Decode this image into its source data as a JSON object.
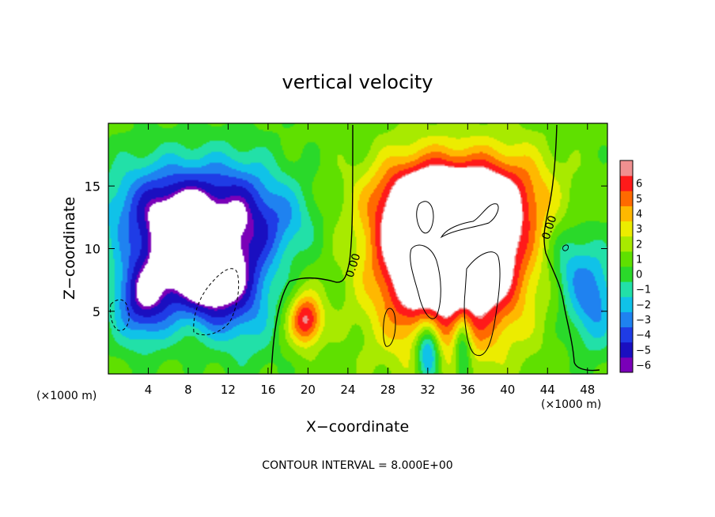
{
  "chart_data": {
    "type": "heatmap",
    "title": "vertical velocity",
    "xlabel": "X−coordinate",
    "ylabel": "Z−coordinate",
    "x_unit_left": "(×1000 m)",
    "x_unit_right": "(×1000 m)",
    "footer": "CONTOUR INTERVAL = 8.000E+00",
    "xlim": [
      0,
      50
    ],
    "ylim": [
      0,
      20
    ],
    "x_ticks": [
      4,
      8,
      12,
      16,
      20,
      24,
      28,
      32,
      36,
      40,
      44,
      48
    ],
    "x_tick_labels": [
      "4",
      "8",
      "12",
      "16",
      "20",
      "24",
      "28",
      "32",
      "36",
      "40",
      "44",
      "48"
    ],
    "y_ticks": [
      5,
      10,
      15
    ],
    "y_tick_labels": [
      "5",
      "10",
      "15"
    ],
    "contour_labels": [
      "0.00",
      "0.00"
    ],
    "colorbar": {
      "levels": [
        -6,
        -5,
        -4,
        -3,
        -2,
        -1,
        0,
        1,
        2,
        3,
        4,
        5,
        6
      ],
      "labels": [
        "−6",
        "−5",
        "−4",
        "−3",
        "−2",
        "−1",
        "0",
        "1",
        "2",
        "3",
        "4",
        "5",
        "6"
      ],
      "colors": [
        "#7a00b8",
        "#1a0fc0",
        "#1f3ce6",
        "#1f82f0",
        "#10c2e8",
        "#22e0a8",
        "#2ad92a",
        "#5fe000",
        "#a8ea00",
        "#ecec00",
        "#ffb800",
        "#ff6a00",
        "#ff1a1a",
        "#f09090"
      ]
    },
    "plumes": [
      {
        "x": 3.5,
        "z": 6.0,
        "sx": 3.0,
        "sz": 3.5,
        "v": -6
      },
      {
        "x": 7.5,
        "z": 9.5,
        "sx": 3.5,
        "sz": 4.0,
        "v": -6
      },
      {
        "x": 10.5,
        "z": 7.0,
        "sx": 3.0,
        "sz": 3.5,
        "v": -6
      },
      {
        "x": 4.0,
        "z": 13.0,
        "sx": 5.0,
        "sz": 4.0,
        "v": -4
      },
      {
        "x": 11.0,
        "z": 13.5,
        "sx": 6.0,
        "sz": 4.0,
        "v": -5
      },
      {
        "x": 14.0,
        "z": 8.0,
        "sx": 3.0,
        "sz": 6.0,
        "v": -4
      },
      {
        "x": 18.0,
        "z": 12.0,
        "sx": 3.0,
        "sz": 3.0,
        "v": -2
      },
      {
        "x": 48.5,
        "z": 6.0,
        "sx": 2.5,
        "sz": 4.0,
        "v": -4
      },
      {
        "x": 46.0,
        "z": 9.0,
        "sx": 2.0,
        "sz": 3.0,
        "v": -2
      },
      {
        "x": 19.8,
        "z": 4.3,
        "sx": 1.6,
        "sz": 2.0,
        "v": 6
      },
      {
        "x": 31.0,
        "z": 10.0,
        "sx": 4.5,
        "sz": 6.0,
        "v": 7
      },
      {
        "x": 37.5,
        "z": 10.0,
        "sx": 4.5,
        "sz": 6.0,
        "v": 7
      },
      {
        "x": 34.0,
        "z": 14.0,
        "sx": 7.0,
        "sz": 3.0,
        "v": 5
      },
      {
        "x": 34.0,
        "z": 8.0,
        "sx": 8.0,
        "sz": 8.0,
        "v": 3
      },
      {
        "x": 32.0,
        "z": 2.0,
        "sx": 1.2,
        "sz": 2.5,
        "v": -6
      },
      {
        "x": 35.5,
        "z": 2.0,
        "sx": 0.9,
        "sz": 3.0,
        "v": -4
      },
      {
        "x": 42.0,
        "z": 15.0,
        "sx": 4.0,
        "sz": 4.0,
        "v": 1.5
      }
    ]
  }
}
